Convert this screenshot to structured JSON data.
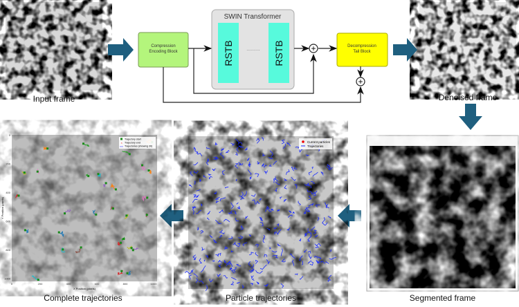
{
  "labels": {
    "input_frame": "Input frame",
    "denoised_frame": "Denoised frame",
    "segmented_frame": "Segmented frame",
    "particle_trajectories": "Particle trajectories",
    "complete_trajectories": "Complete trajectories"
  },
  "network": {
    "encoder": [
      "Compression",
      "Encoding Block"
    ],
    "swin_title": "SWIN Transformer",
    "block": "RSTB",
    "ellipsis": "..........",
    "decoder": [
      "Decompression",
      "Tail Block"
    ],
    "plus": "+"
  },
  "colors": {
    "arrow": "#1f5f7f",
    "encoder": "#b4f57c",
    "swin_bg": "#e3e3e3",
    "rstb": "#57fadc",
    "decoder": "#ffff00"
  },
  "complete_plot": {
    "legend": [
      "Trajectory start",
      "Trajectory end",
      "Trajectories (showing 30)"
    ],
    "xlabel": "X Position (pixels)",
    "ylabel": "Y Position (pixels)",
    "xticks": [
      "0",
      "200",
      "400",
      "600",
      "800",
      "1000"
    ],
    "yticks": [
      "0",
      "200",
      "400",
      "600",
      "800",
      "1000"
    ]
  },
  "particle_plot": {
    "legend": [
      "Current particles",
      "Trajectories"
    ]
  }
}
